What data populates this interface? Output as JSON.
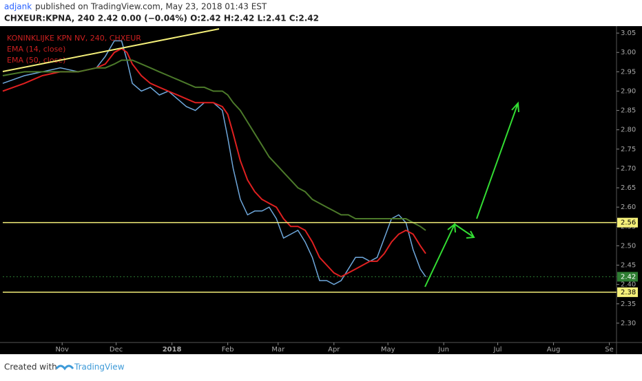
{
  "header": {
    "author": "adjank",
    "published": "published on TradingView.com, May 23, 2018 01:43 EST",
    "symbol_line": "CHXEUR:KPNA, 240  2.42  0.00 (−0.04%)  O:2.42  H:2.42  L:2.41  C:2.42"
  },
  "chart_data": {
    "type": "line",
    "x": [
      -2,
      10,
      20,
      30,
      40,
      50,
      55,
      60,
      64,
      67,
      70,
      75,
      80,
      85,
      90,
      95,
      100,
      105,
      110,
      115,
      120,
      123,
      126,
      130,
      134,
      138,
      142,
      146,
      150,
      154,
      158,
      162,
      166,
      170,
      174,
      178,
      182,
      186,
      190,
      194,
      198,
      202,
      206,
      210,
      214,
      218,
      222,
      226,
      230,
      233
    ],
    "series": [
      {
        "name": "KONINKLIJKE KPN NV, 240, CHXEUR",
        "color": "#6fa8dc",
        "values": [
          2.92,
          2.94,
          2.95,
          2.96,
          2.95,
          2.96,
          2.99,
          3.03,
          3.03,
          2.98,
          2.92,
          2.9,
          2.91,
          2.89,
          2.9,
          2.88,
          2.86,
          2.85,
          2.87,
          2.87,
          2.85,
          2.78,
          2.7,
          2.62,
          2.58,
          2.59,
          2.59,
          2.6,
          2.57,
          2.52,
          2.53,
          2.54,
          2.51,
          2.47,
          2.41,
          2.41,
          2.4,
          2.41,
          2.44,
          2.47,
          2.47,
          2.46,
          2.47,
          2.52,
          2.57,
          2.58,
          2.56,
          2.49,
          2.44,
          2.42
        ]
      },
      {
        "name": "EMA (14, close)",
        "color": "#e02020",
        "values": [
          2.9,
          2.92,
          2.94,
          2.95,
          2.95,
          2.96,
          2.97,
          3.0,
          3.01,
          3.0,
          2.97,
          2.94,
          2.92,
          2.91,
          2.9,
          2.89,
          2.88,
          2.87,
          2.87,
          2.87,
          2.86,
          2.84,
          2.79,
          2.72,
          2.67,
          2.64,
          2.62,
          2.61,
          2.6,
          2.57,
          2.55,
          2.55,
          2.54,
          2.51,
          2.47,
          2.45,
          2.43,
          2.42,
          2.43,
          2.44,
          2.45,
          2.46,
          2.46,
          2.48,
          2.51,
          2.53,
          2.54,
          2.53,
          2.5,
          2.48
        ]
      },
      {
        "name": "EMA (50, close)",
        "color": "#4c7a2a",
        "values": [
          2.94,
          2.95,
          2.95,
          2.95,
          2.95,
          2.96,
          2.96,
          2.97,
          2.98,
          2.98,
          2.98,
          2.97,
          2.96,
          2.95,
          2.94,
          2.93,
          2.92,
          2.91,
          2.91,
          2.9,
          2.9,
          2.89,
          2.87,
          2.85,
          2.82,
          2.79,
          2.76,
          2.73,
          2.71,
          2.69,
          2.67,
          2.65,
          2.64,
          2.62,
          2.61,
          2.6,
          2.59,
          2.58,
          2.58,
          2.57,
          2.57,
          2.57,
          2.57,
          2.57,
          2.57,
          2.57,
          2.57,
          2.56,
          2.55,
          2.54
        ]
      }
    ],
    "xlim": [
      -2,
      339
    ],
    "xticks": [
      {
        "value": 31,
        "label": "Nov"
      },
      {
        "value": 61,
        "label": "Dec"
      },
      {
        "value": 92,
        "label": "2018"
      },
      {
        "value": 123,
        "label": "Feb"
      },
      {
        "value": 151,
        "label": "Mar"
      },
      {
        "value": 182,
        "label": "Apr"
      },
      {
        "value": 212,
        "label": "May"
      },
      {
        "value": 243,
        "label": "Jun"
      },
      {
        "value": 273,
        "label": "Jul"
      },
      {
        "value": 304,
        "label": "Aug"
      },
      {
        "value": 335,
        "label": "Se"
      }
    ],
    "ylim": [
      2.25,
      3.068
    ],
    "yticks": [
      {
        "value": 2.3,
        "label": "2.30"
      },
      {
        "value": 2.35,
        "label": "2.35"
      },
      {
        "value": 2.4,
        "label": "2.40"
      },
      {
        "value": 2.45,
        "label": "2.45"
      },
      {
        "value": 2.5,
        "label": "2.50"
      },
      {
        "value": 2.55,
        "label": "2.55"
      },
      {
        "value": 2.6,
        "label": "2.60"
      },
      {
        "value": 2.65,
        "label": "2.65"
      },
      {
        "value": 2.7,
        "label": "2.70"
      },
      {
        "value": 2.75,
        "label": "2.75"
      },
      {
        "value": 2.8,
        "label": "2.80"
      },
      {
        "value": 2.85,
        "label": "2.85"
      },
      {
        "value": 2.9,
        "label": "2.90"
      },
      {
        "value": 2.95,
        "label": "2.95"
      },
      {
        "value": 3.0,
        "label": "3.00"
      },
      {
        "value": 3.05,
        "label": "3.05"
      }
    ],
    "hlines": [
      2.56,
      2.38
    ],
    "hline_color": "#f5f07a",
    "last_price": 2.42,
    "last_price_color": "#2e7d32"
  },
  "footer": {
    "created": "Created with",
    "brand": "TradingView"
  }
}
